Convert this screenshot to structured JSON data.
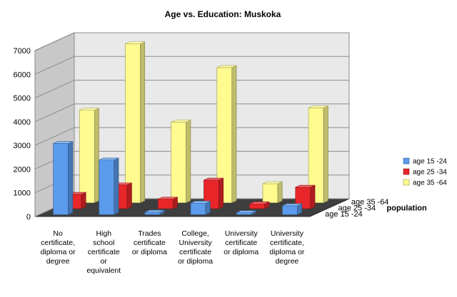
{
  "chart_data": {
    "type": "bar",
    "title": "Age vs. Education: Muskoka",
    "categories": [
      [
        "No",
        "certificate,",
        "diploma or",
        "degree"
      ],
      [
        "High",
        "school",
        "certificate",
        "or",
        "equivalent"
      ],
      [
        "Trades",
        "certificate",
        "or diploma"
      ],
      [
        "College,",
        "University",
        "certificate",
        "or diploma"
      ],
      [
        "University",
        "certificate",
        "or diploma"
      ],
      [
        "University",
        "certificate,",
        "diploma or",
        "degree"
      ]
    ],
    "series": [
      {
        "name": "age 15 -24",
        "color": "#5B9BEC",
        "values": [
          3000,
          2300,
          100,
          480,
          80,
          370
        ]
      },
      {
        "name": "age 25 -34",
        "color": "#E8262A",
        "values": [
          600,
          1000,
          400,
          1200,
          200,
          900
        ]
      },
      {
        "name": "age 35 -64",
        "color": "#FFFB8E",
        "values": [
          3900,
          6700,
          3400,
          5700,
          800,
          4000
        ]
      }
    ],
    "depth_axis": {
      "labels": [
        "age 15 -24",
        "age 25 -34",
        "age 35 -64"
      ],
      "title": "population"
    },
    "yticks": [
      0,
      1000,
      2000,
      3000,
      4000,
      5000,
      6000,
      7000
    ],
    "ylim": [
      0,
      7000
    ],
    "grid": true,
    "legend": "right"
  }
}
